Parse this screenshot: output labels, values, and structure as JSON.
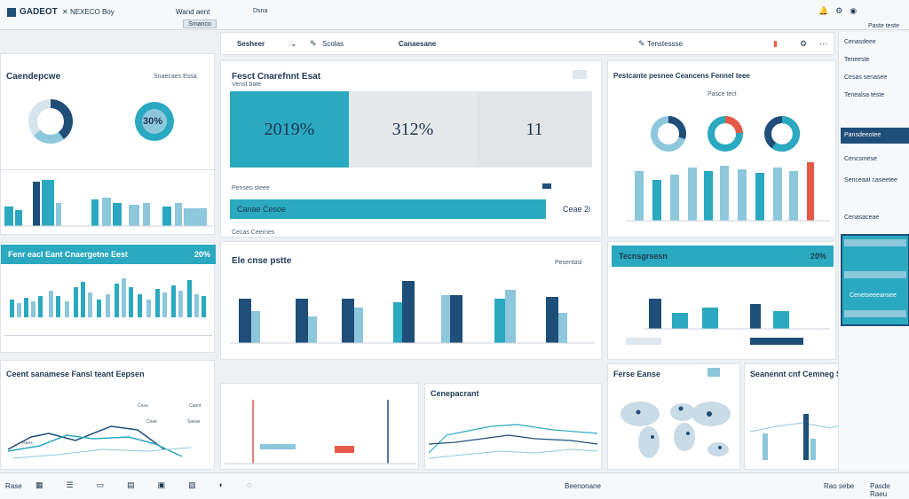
{
  "topbar": {
    "logo": "GADEOT",
    "tab_label": "NEXECO Boy",
    "center_text": "Wand aent",
    "button": "Smanco",
    "right_icon_text": "Dsna",
    "far_right": "Paste teste"
  },
  "toolbar": {
    "item1": "Sesheer",
    "item2": "Scolas",
    "item3": "Canaesane",
    "item4": "Tenstessse"
  },
  "left_sidebar": {
    "title": "Caendepcwe",
    "legend": "Snaecaes Essa",
    "donut_label": "30%",
    "bars_section_title": "Fenr eacl Eant Cnaergetne Eest",
    "bars_section_value": "20%",
    "footer_note": "Ceent sanamese Fansl teant Eepsen"
  },
  "kpi": {
    "title": "Fesct Cnarefnnt Esat",
    "subtitle": "Venst bate",
    "value1": "2019%",
    "value2": "312%",
    "value3": "11",
    "legend_text": "Penseo steee",
    "bar_label": "Canae Cesoe",
    "bar_value": "Ceae 2i",
    "caption": "Cecas Ceernes"
  },
  "mid_chart": {
    "title": "Ele cnse pstte",
    "series_note": "Pesentasl"
  },
  "right_panel": {
    "title": "Pestcante pesnee Ceancens Fennel teee",
    "subtitle": "Pasce tect",
    "bar_section": "Tecnsgrsesn",
    "bar_value": "20%"
  },
  "right_sidebar": {
    "items": [
      "Cenasdeee",
      "Teneeste",
      "Cesas senasee",
      "Tenealsa teste",
      "Pansdeeotee",
      "Cencsmese",
      "Senceaat caseetee",
      "Cenasaceae"
    ],
    "status_text": "Cenetseeeansee"
  },
  "bottom": {
    "map_title": "Ferse Eanse",
    "right_title": "Seanennt cnf Cemneg Sogede",
    "trend_title": "Cenepacrant",
    "footer_left": "Rase",
    "footer_center": "Beenonane",
    "footer_right1": "Rao sebe",
    "footer_right2": "Pasde Raeu"
  },
  "colors": {
    "teal": "#2aa9c0",
    "navy": "#1f4e79",
    "light_blue": "#8dc7dc",
    "red": "#e55a46"
  }
}
